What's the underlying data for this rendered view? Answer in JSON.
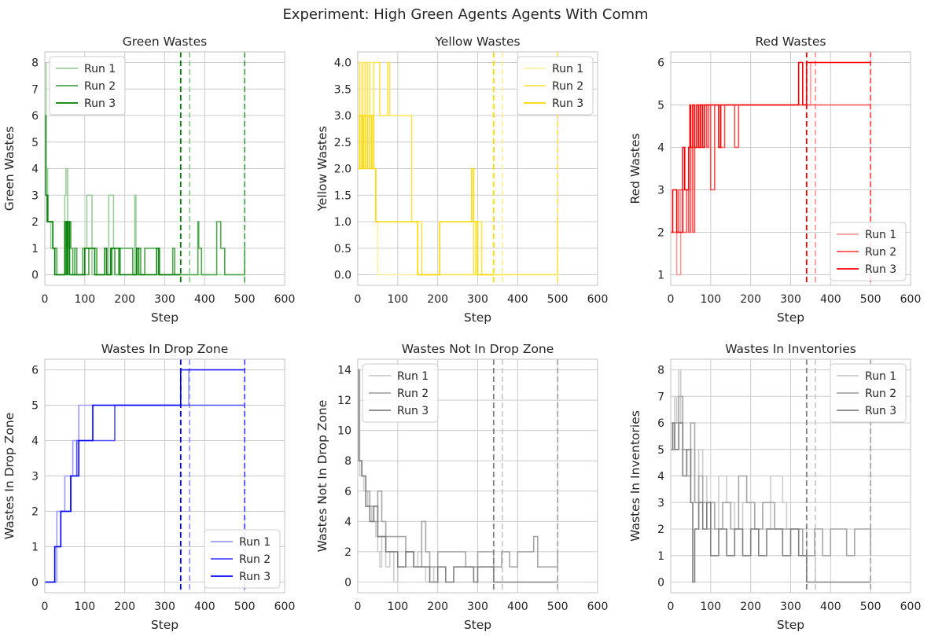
{
  "figure_title": "Experiment: High Green Agents Agents With Comm",
  "chart_data": [
    {
      "type": "line",
      "title": "Green Wastes",
      "xlabel": "Step",
      "ylabel": "Green Wastes",
      "xlim": [
        0,
        600
      ],
      "ylim": [
        -0.4,
        8.4
      ],
      "xticks": [
        0,
        100,
        200,
        300,
        400,
        500,
        600
      ],
      "yticks": [
        0,
        1,
        2,
        3,
        4,
        5,
        6,
        7,
        8
      ],
      "ytick_labels": [
        "0",
        "1",
        "2",
        "3",
        "4",
        "5",
        "6",
        "7",
        "8"
      ],
      "grid": true,
      "legend_position": "upper left",
      "base_color": "#008000",
      "series": [
        {
          "name": "Run 1",
          "alpha": 0.4,
          "step": true,
          "x": [
            0,
            3,
            7,
            15,
            25,
            50,
            53,
            57,
            60,
            100,
            105,
            118,
            160,
            163,
            172,
            175,
            225,
            228,
            232,
            500
          ],
          "y": [
            8,
            4,
            2,
            1,
            0,
            3,
            4,
            1,
            0,
            1,
            3,
            0,
            3,
            3,
            1,
            0,
            3,
            0,
            0,
            0
          ],
          "end_marker": 362
        },
        {
          "name": "Run 2",
          "alpha": 0.7,
          "step": true,
          "x": [
            0,
            3,
            8,
            20,
            30,
            52,
            55,
            60,
            65,
            70,
            75,
            80,
            95,
            100,
            110,
            130,
            168,
            175,
            185,
            220,
            230,
            240,
            250,
            280,
            287,
            290,
            320,
            325,
            333,
            350,
            365,
            383,
            385,
            392,
            430,
            440,
            450,
            500
          ],
          "y": [
            6,
            3,
            2,
            1,
            0,
            2,
            1,
            2,
            1,
            0,
            1,
            0,
            1,
            0,
            1,
            0,
            1,
            0,
            1,
            0,
            1,
            0,
            1,
            1,
            0,
            0,
            1,
            0,
            0,
            0,
            0,
            2,
            1,
            0,
            2,
            1,
            0,
            1
          ],
          "end_marker": 500
        },
        {
          "name": "Run 3",
          "alpha": 1.0,
          "step": true,
          "x": [
            0,
            2,
            6,
            20,
            25,
            50,
            55,
            57,
            62,
            100,
            105,
            110,
            125,
            150,
            155,
            165,
            188,
            230,
            235,
            245,
            280,
            285,
            290,
            340
          ],
          "y": [
            6,
            3,
            2,
            1,
            0,
            2,
            0,
            2,
            0,
            1,
            1,
            1,
            0,
            1,
            0,
            1,
            0,
            1,
            0,
            0,
            1,
            0,
            0,
            0
          ],
          "end_marker": 340
        }
      ]
    },
    {
      "type": "line",
      "title": "Yellow Wastes",
      "xlabel": "Step",
      "ylabel": "Yellow Wastes",
      "xlim": [
        0,
        600
      ],
      "ylim": [
        -0.2,
        4.2
      ],
      "xticks": [
        0,
        100,
        200,
        300,
        400,
        500,
        600
      ],
      "yticks": [
        0,
        0.5,
        1,
        1.5,
        2,
        2.5,
        3,
        3.5,
        4
      ],
      "ytick_labels": [
        "0.0",
        "0.5",
        "1.0",
        "1.5",
        "2.0",
        "2.5",
        "3.0",
        "3.5",
        "4.0"
      ],
      "grid": true,
      "legend_position": "upper right",
      "base_color": "#FFD700",
      "series": [
        {
          "name": "Run 1",
          "alpha": 0.4,
          "step": true,
          "x": [
            0,
            5,
            10,
            20,
            30,
            40,
            45,
            50,
            500
          ],
          "y": [
            4,
            2,
            4,
            3,
            4,
            2,
            1,
            0,
            0
          ],
          "end_marker": 362
        },
        {
          "name": "Run 2",
          "alpha": 0.7,
          "step": true,
          "x": [
            0,
            5,
            12,
            18,
            25,
            30,
            40,
            50,
            55,
            75,
            80,
            85,
            135,
            140,
            160,
            165,
            290,
            295,
            300,
            310,
            500
          ],
          "y": [
            4,
            2,
            4,
            3,
            4,
            3,
            4,
            4,
            3,
            4,
            3,
            3,
            1,
            1,
            0,
            0,
            1,
            0,
            1,
            0,
            1
          ],
          "end_marker": 500
        },
        {
          "name": "Run 3",
          "alpha": 1.0,
          "step": true,
          "x": [
            0,
            5,
            10,
            15,
            20,
            25,
            30,
            35,
            40,
            45,
            150,
            200,
            205,
            285,
            290,
            295,
            300,
            340
          ],
          "y": [
            2,
            3,
            2,
            3,
            2,
            3,
            2,
            3,
            2,
            1,
            0,
            0,
            1,
            2,
            1,
            1,
            0,
            0
          ],
          "end_marker": 340
        }
      ]
    },
    {
      "type": "line",
      "title": "Red Wastes",
      "xlabel": "Step",
      "ylabel": "Red Wastes",
      "xlim": [
        0,
        600
      ],
      "ylim": [
        0.75,
        6.25
      ],
      "xticks": [
        0,
        100,
        200,
        300,
        400,
        500,
        600
      ],
      "yticks": [
        1,
        2,
        3,
        4,
        5,
        6
      ],
      "ytick_labels": [
        "1",
        "2",
        "3",
        "4",
        "5",
        "6"
      ],
      "grid": true,
      "legend_position": "lower right",
      "base_color": "#FF0000",
      "series": [
        {
          "name": "Run 1",
          "alpha": 0.4,
          "step": true,
          "x": [
            0,
            15,
            25,
            35,
            40,
            45,
            50,
            55,
            60,
            70,
            75,
            80,
            90,
            95,
            100,
            110,
            350,
            362
          ],
          "y": [
            2,
            1,
            3,
            3,
            2,
            4,
            3,
            5,
            4,
            5,
            5,
            5,
            5,
            5,
            5,
            5,
            6,
            6
          ],
          "end_marker": 362
        },
        {
          "name": "Run 2",
          "alpha": 0.7,
          "step": true,
          "x": [
            0,
            20,
            30,
            40,
            45,
            50,
            55,
            60,
            70,
            75,
            80,
            90,
            95,
            100,
            110,
            125,
            135,
            150,
            160,
            170,
            175,
            500
          ],
          "y": [
            2,
            3,
            2,
            3,
            2,
            4,
            2,
            4,
            5,
            4,
            5,
            4,
            5,
            3,
            5,
            4,
            5,
            5,
            4,
            5,
            5,
            5
          ],
          "end_marker": 500
        },
        {
          "name": "Run 3",
          "alpha": 1.0,
          "step": true,
          "x": [
            0,
            5,
            15,
            30,
            35,
            45,
            48,
            50,
            55,
            60,
            65,
            70,
            75,
            80,
            85,
            90,
            120,
            125,
            320,
            330,
            340,
            500
          ],
          "y": [
            2,
            3,
            2,
            4,
            3,
            4,
            5,
            4,
            5,
            4,
            5,
            4,
            5,
            4,
            5,
            5,
            4,
            5,
            6,
            5,
            6,
            6
          ],
          "end_marker": 340
        }
      ]
    },
    {
      "type": "line",
      "title": "Wastes In Drop Zone",
      "xlabel": "Step",
      "ylabel": "Wastes In Drop Zone",
      "xlim": [
        0,
        600
      ],
      "ylim": [
        -0.3,
        6.3
      ],
      "xticks": [
        0,
        100,
        200,
        300,
        400,
        500,
        600
      ],
      "yticks": [
        0,
        1,
        2,
        3,
        4,
        5,
        6
      ],
      "ytick_labels": [
        "0",
        "1",
        "2",
        "3",
        "4",
        "5",
        "6"
      ],
      "grid": true,
      "legend_position": "lower right",
      "base_color": "#0000FF",
      "series": [
        {
          "name": "Run 1",
          "alpha": 0.4,
          "step": true,
          "x": [
            0,
            30,
            50,
            70,
            85,
            100,
            360,
            362
          ],
          "y": [
            0,
            2,
            3,
            4,
            5,
            5,
            6,
            6
          ],
          "end_marker": 362
        },
        {
          "name": "Run 2",
          "alpha": 0.7,
          "step": true,
          "x": [
            0,
            25,
            40,
            50,
            65,
            80,
            175,
            500
          ],
          "y": [
            0,
            1,
            2,
            2,
            3,
            4,
            5,
            5
          ],
          "end_marker": 500
        },
        {
          "name": "Run 3",
          "alpha": 1.0,
          "step": true,
          "x": [
            0,
            25,
            40,
            50,
            65,
            85,
            120,
            340,
            500
          ],
          "y": [
            0,
            1,
            2,
            2,
            3,
            4,
            5,
            6,
            6
          ],
          "end_marker": 340
        }
      ]
    },
    {
      "type": "line",
      "title": "Wastes Not In Drop Zone",
      "xlabel": "Step",
      "ylabel": "Wastes Not In Drop Zone",
      "xlim": [
        0,
        600
      ],
      "ylim": [
        -0.7,
        14.7
      ],
      "xticks": [
        0,
        100,
        200,
        300,
        400,
        500,
        600
      ],
      "yticks": [
        0,
        2,
        4,
        6,
        8,
        10,
        12,
        14
      ],
      "ytick_labels": [
        "0",
        "2",
        "4",
        "6",
        "8",
        "10",
        "12",
        "14"
      ],
      "grid": true,
      "legend_position": "upper left",
      "base_color": "#808080",
      "series": [
        {
          "name": "Run 1",
          "alpha": 0.4,
          "step": true,
          "x": [
            0,
            5,
            15,
            25,
            35,
            45,
            50,
            55,
            60,
            70,
            80,
            90,
            100,
            150,
            160,
            170,
            180,
            190,
            200,
            362
          ],
          "y": [
            14,
            7,
            6,
            5,
            4,
            3,
            2,
            1,
            3,
            1,
            2,
            0,
            1,
            2,
            1,
            0,
            1,
            0,
            0,
            0
          ],
          "end_marker": 362
        },
        {
          "name": "Run 2",
          "alpha": 0.7,
          "step": true,
          "x": [
            0,
            3,
            10,
            20,
            30,
            40,
            50,
            60,
            70,
            80,
            100,
            120,
            140,
            160,
            170,
            180,
            200,
            250,
            270,
            300,
            320,
            340,
            360,
            380,
            400,
            440,
            450,
            460,
            500
          ],
          "y": [
            14,
            8,
            7,
            6,
            5,
            4,
            6,
            4,
            3,
            3,
            3,
            2,
            1,
            4,
            2,
            1,
            2,
            2,
            1,
            2,
            2,
            1,
            2,
            1,
            2,
            3,
            1,
            1,
            2
          ],
          "end_marker": 500
        },
        {
          "name": "Run 3",
          "alpha": 1.0,
          "step": true,
          "x": [
            0,
            3,
            10,
            20,
            30,
            40,
            50,
            60,
            70,
            80,
            100,
            120,
            140,
            160,
            180,
            200,
            220,
            240,
            280,
            290,
            300,
            340,
            500
          ],
          "y": [
            14,
            8,
            7,
            5,
            4,
            5,
            3,
            3,
            2,
            2,
            1,
            2,
            1,
            1,
            0,
            1,
            0,
            1,
            1,
            0,
            1,
            0,
            0
          ],
          "end_marker": 340
        }
      ]
    },
    {
      "type": "line",
      "title": "Wastes In Inventories",
      "xlabel": "Step",
      "ylabel": "Wastes In Inventories",
      "xlim": [
        0,
        600
      ],
      "ylim": [
        -0.4,
        8.4
      ],
      "xticks": [
        0,
        100,
        200,
        300,
        400,
        500,
        600
      ],
      "yticks": [
        0,
        1,
        2,
        3,
        4,
        5,
        6,
        7,
        8
      ],
      "ytick_labels": [
        "0",
        "1",
        "2",
        "3",
        "4",
        "5",
        "6",
        "7",
        "8"
      ],
      "grid": true,
      "legend_position": "upper right",
      "base_color": "#808080",
      "series": [
        {
          "name": "Run 1",
          "alpha": 0.4,
          "step": true,
          "x": [
            0,
            5,
            10,
            15,
            20,
            25,
            30,
            40,
            50,
            60,
            70,
            80,
            90,
            100,
            120,
            140,
            160,
            180,
            200,
            250,
            270,
            280,
            290,
            340,
            362
          ],
          "y": [
            6,
            5,
            7,
            6,
            8,
            6,
            5,
            4,
            5,
            3,
            5,
            4,
            3,
            2,
            4,
            3,
            2,
            3,
            2,
            4,
            4,
            3,
            2,
            1,
            0
          ],
          "end_marker": 362
        },
        {
          "name": "Run 2",
          "alpha": 0.7,
          "step": true,
          "x": [
            0,
            5,
            10,
            20,
            30,
            40,
            50,
            60,
            70,
            80,
            90,
            100,
            110,
            130,
            150,
            170,
            190,
            210,
            230,
            260,
            280,
            300,
            330,
            360,
            380,
            400,
            420,
            440,
            460,
            480,
            500
          ],
          "y": [
            6,
            5,
            6,
            7,
            5,
            4,
            6,
            3,
            4,
            3,
            2,
            3,
            2,
            3,
            2,
            4,
            3,
            2,
            3,
            2,
            2,
            2,
            1,
            2,
            1,
            2,
            2,
            1,
            2,
            2,
            1
          ],
          "end_marker": 500
        },
        {
          "name": "Run 3",
          "alpha": 1.0,
          "step": true,
          "x": [
            0,
            5,
            10,
            20,
            30,
            40,
            50,
            55,
            60,
            70,
            80,
            90,
            100,
            120,
            140,
            160,
            180,
            200,
            220,
            240,
            260,
            280,
            300,
            320,
            340,
            500
          ],
          "y": [
            5,
            6,
            5,
            6,
            4,
            5,
            3,
            0,
            2,
            3,
            2,
            3,
            1,
            2,
            1,
            2,
            1,
            2,
            1,
            2,
            2,
            1,
            2,
            1,
            0,
            0
          ],
          "end_marker": 340
        }
      ]
    }
  ]
}
